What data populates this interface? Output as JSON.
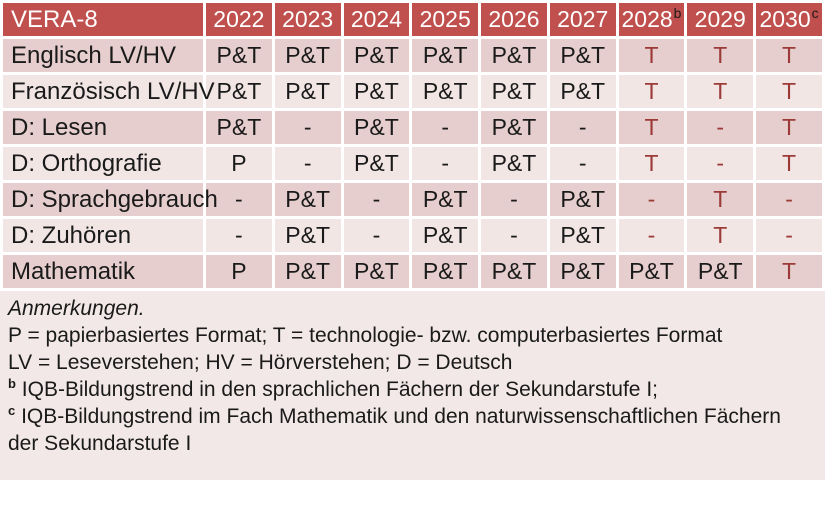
{
  "colors": {
    "header_bg": "#C0504D",
    "header_text": "#FFFFFF",
    "band_dark": "#E5CECD",
    "band_light": "#F2E6E5",
    "notes_bg": "#F2E8E7",
    "text": "#1A1A1A",
    "accent_red": "#9B3A37"
  },
  "table": {
    "title": "VERA-8",
    "columns": [
      {
        "year": "2022",
        "sup": ""
      },
      {
        "year": "2023",
        "sup": ""
      },
      {
        "year": "2024",
        "sup": ""
      },
      {
        "year": "2025",
        "sup": ""
      },
      {
        "year": "2026",
        "sup": ""
      },
      {
        "year": "2027",
        "sup": ""
      },
      {
        "year": "2028",
        "sup": "b"
      },
      {
        "year": "2029",
        "sup": ""
      },
      {
        "year": "2030",
        "sup": "c"
      }
    ],
    "rows": [
      {
        "label": "Englisch LV/HV",
        "cells": [
          {
            "v": "P&T"
          },
          {
            "v": "P&T"
          },
          {
            "v": "P&T"
          },
          {
            "v": "P&T"
          },
          {
            "v": "P&T"
          },
          {
            "v": "P&T"
          },
          {
            "v": "T",
            "red": true
          },
          {
            "v": "T",
            "red": true
          },
          {
            "v": "T",
            "red": true
          }
        ]
      },
      {
        "label": "Französisch LV/HV",
        "cells": [
          {
            "v": "P&T"
          },
          {
            "v": "P&T"
          },
          {
            "v": "P&T"
          },
          {
            "v": "P&T"
          },
          {
            "v": "P&T"
          },
          {
            "v": "P&T"
          },
          {
            "v": "T",
            "red": true
          },
          {
            "v": "T",
            "red": true
          },
          {
            "v": "T",
            "red": true
          }
        ]
      },
      {
        "label": "D: Lesen",
        "cells": [
          {
            "v": "P&T"
          },
          {
            "v": "-"
          },
          {
            "v": "P&T"
          },
          {
            "v": "-"
          },
          {
            "v": "P&T"
          },
          {
            "v": "-"
          },
          {
            "v": "T",
            "red": true
          },
          {
            "v": "-",
            "red": true
          },
          {
            "v": "T",
            "red": true
          }
        ]
      },
      {
        "label": "D: Orthografie",
        "cells": [
          {
            "v": "P"
          },
          {
            "v": "-"
          },
          {
            "v": "P&T"
          },
          {
            "v": "-"
          },
          {
            "v": "P&T"
          },
          {
            "v": "-"
          },
          {
            "v": "T",
            "red": true
          },
          {
            "v": "-",
            "red": true
          },
          {
            "v": "T",
            "red": true
          }
        ]
      },
      {
        "label": "D: Sprachgebrauch",
        "cells": [
          {
            "v": "-"
          },
          {
            "v": "P&T"
          },
          {
            "v": "-"
          },
          {
            "v": "P&T"
          },
          {
            "v": "-"
          },
          {
            "v": "P&T"
          },
          {
            "v": "-",
            "red": true
          },
          {
            "v": "T",
            "red": true
          },
          {
            "v": "-",
            "red": true
          }
        ]
      },
      {
        "label": "D: Zuhören",
        "cells": [
          {
            "v": "-"
          },
          {
            "v": "P&T"
          },
          {
            "v": "-"
          },
          {
            "v": "P&T"
          },
          {
            "v": "-"
          },
          {
            "v": "P&T"
          },
          {
            "v": "-",
            "red": true
          },
          {
            "v": "T",
            "red": true
          },
          {
            "v": "-",
            "red": true
          }
        ]
      },
      {
        "label": "Mathematik",
        "cells": [
          {
            "v": "P"
          },
          {
            "v": "P&T"
          },
          {
            "v": "P&T"
          },
          {
            "v": "P&T"
          },
          {
            "v": "P&T"
          },
          {
            "v": "P&T"
          },
          {
            "v": "P&T"
          },
          {
            "v": "P&T"
          },
          {
            "v": "T",
            "red": true
          }
        ]
      }
    ]
  },
  "notes": {
    "heading": "Anmerkungen.",
    "lines": [
      {
        "sup": "",
        "text": "P = papierbasiertes Format; T = technologie- bzw. computerbasiertes Format"
      },
      {
        "sup": "",
        "text": "LV = Leseverstehen; HV = Hörverstehen; D = Deutsch"
      },
      {
        "sup": "b",
        "text": "IQB-Bildungstrend in den sprachlichen Fächern der Sekundarstufe I;"
      },
      {
        "sup": "c",
        "text": "IQB-Bildungstrend im Fach Mathematik und den naturwissenschaftlichen Fächern der Sekundarstufe I"
      }
    ]
  }
}
